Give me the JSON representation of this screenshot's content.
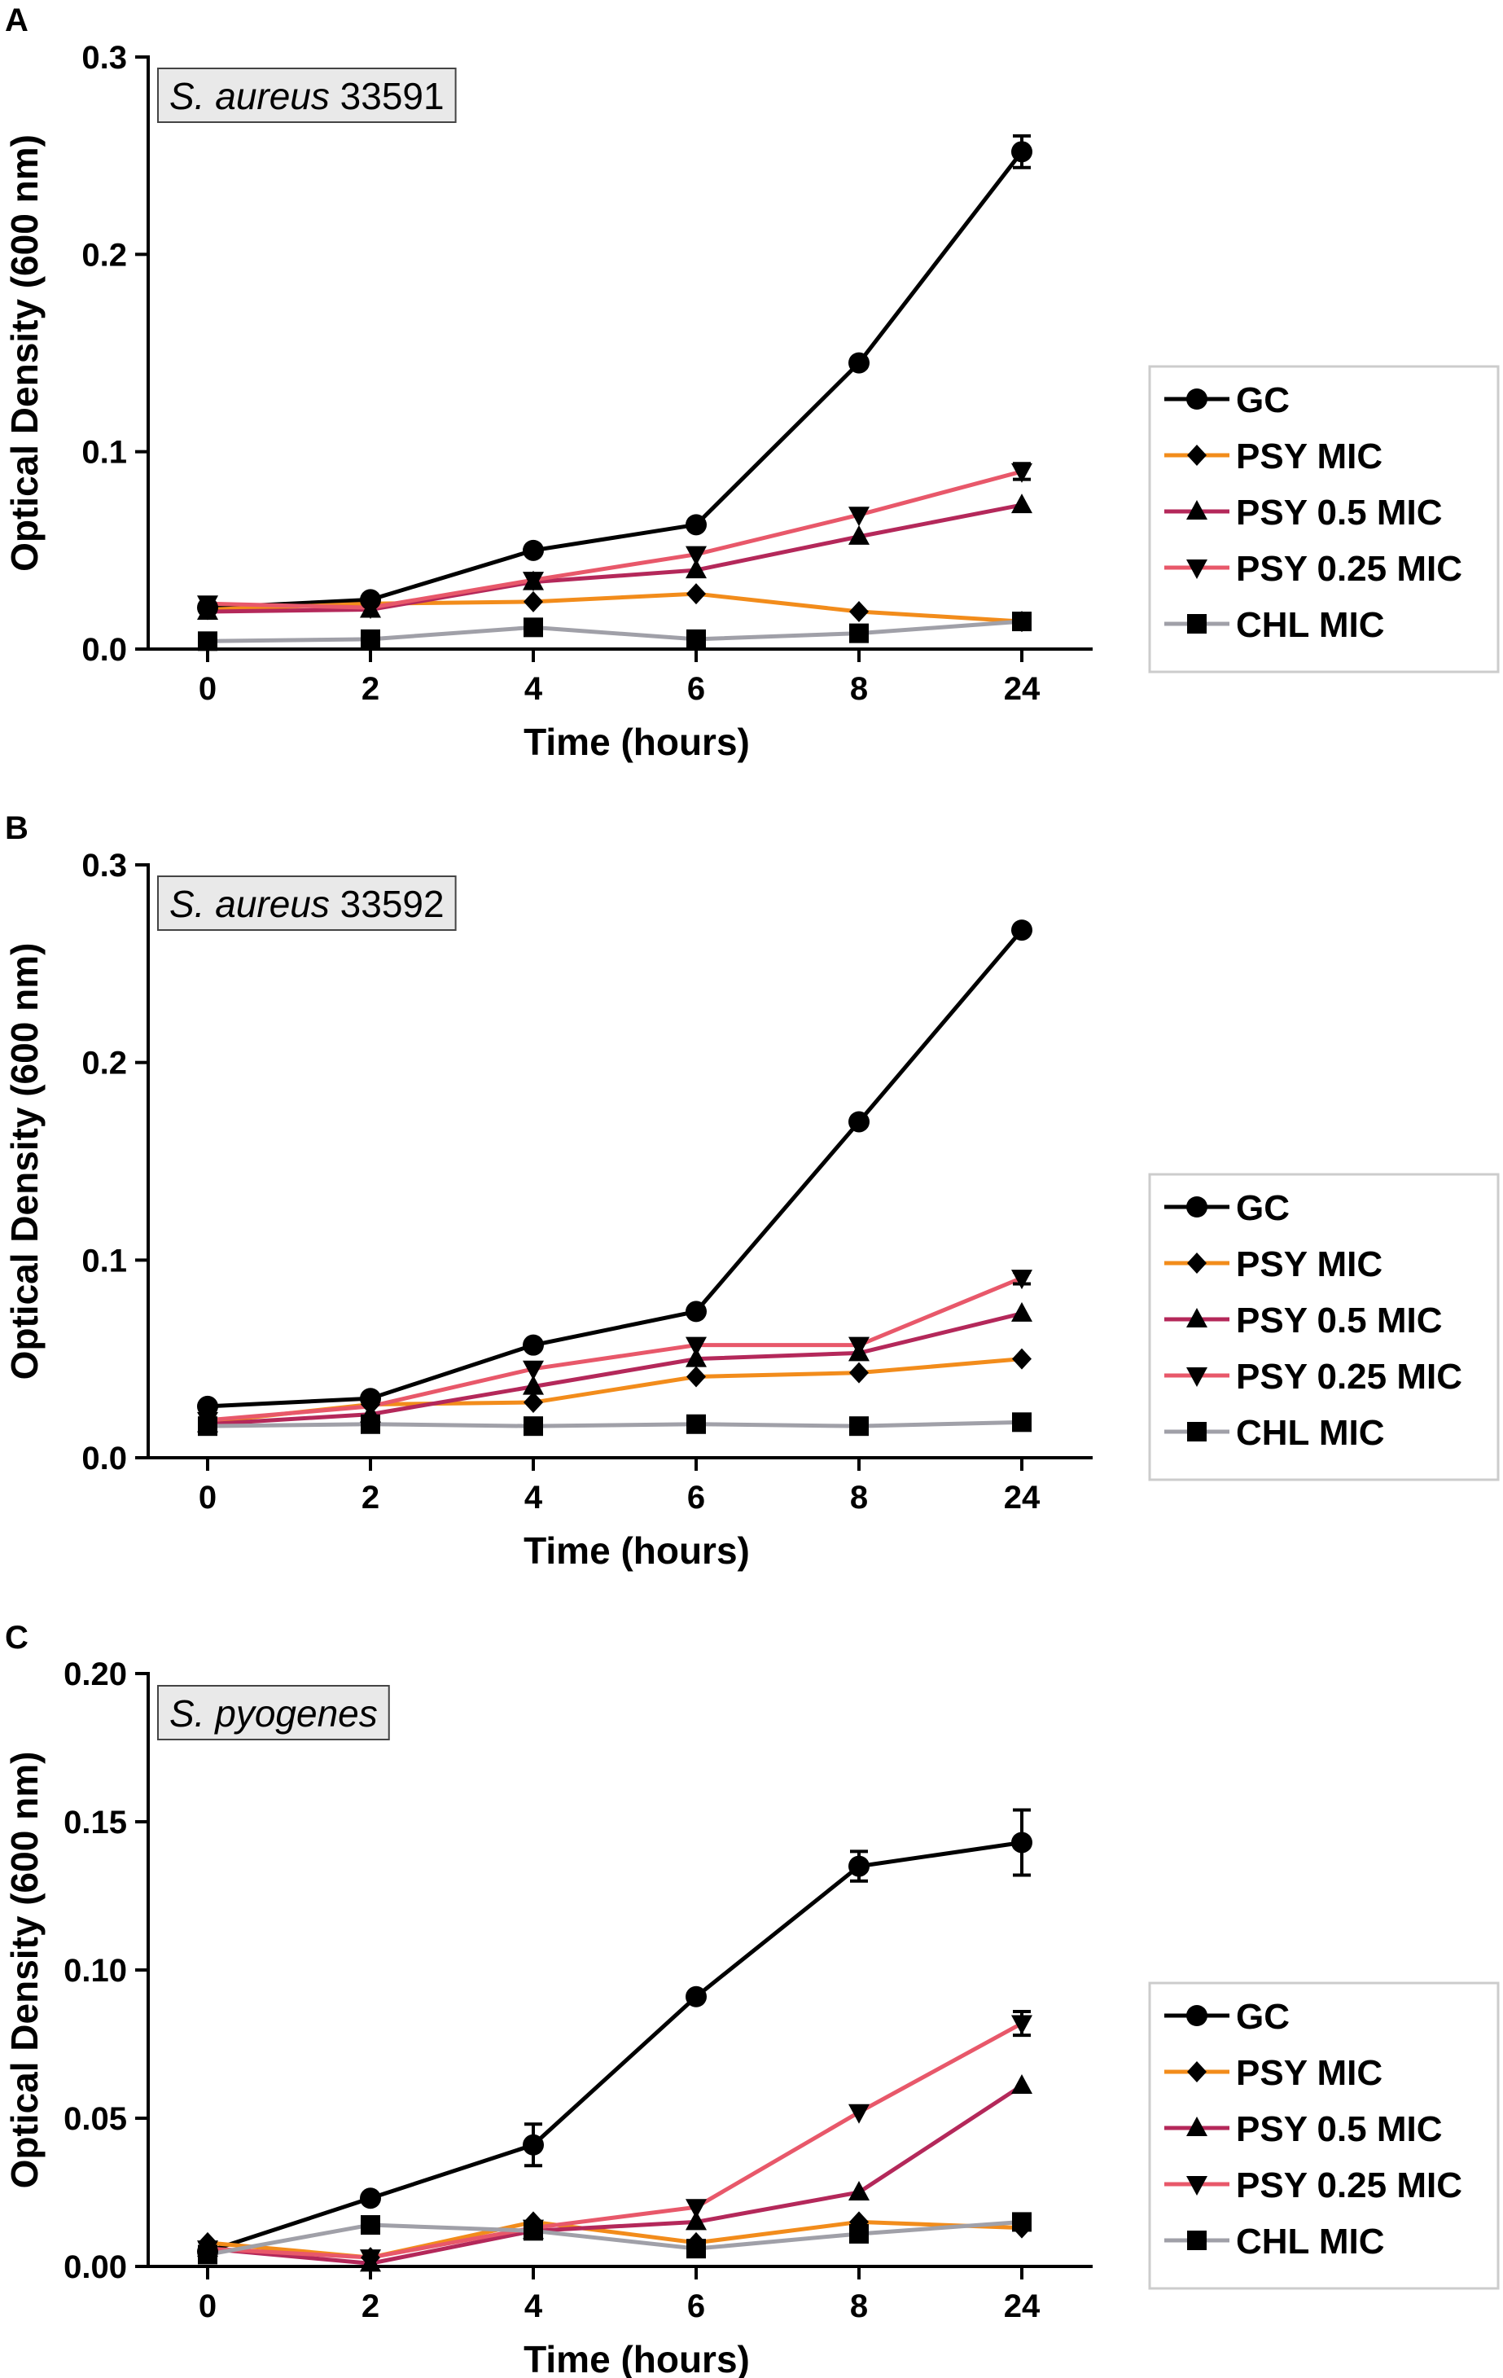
{
  "chart_data": [
    {
      "type": "line",
      "panel_label": "A",
      "annotation": {
        "italic": "S. aureus",
        "plain": "33591"
      },
      "xlabel": "Time (hours)",
      "ylabel": "Optical Density (600 nm)",
      "categories": [
        "0",
        "2",
        "4",
        "6",
        "8",
        "24"
      ],
      "ylim": [
        0,
        0.3
      ],
      "yticks": [
        "0.0",
        "0.1",
        "0.2",
        "0.3"
      ],
      "ytick_values": [
        0,
        0.1,
        0.2,
        0.3
      ],
      "legend_position": "right",
      "series": [
        {
          "name": "GC",
          "color": "#000000",
          "marker": "circle",
          "values": [
            0.021,
            0.025,
            0.05,
            0.063,
            0.145,
            0.252
          ],
          "errors": [
            0,
            0,
            0,
            0,
            0,
            0.008
          ]
        },
        {
          "name": "PSY MIC",
          "color": "#f28c1b",
          "marker": "diamond",
          "values": [
            0.02,
            0.023,
            0.024,
            0.028,
            0.019,
            0.014
          ],
          "errors": [
            0,
            0,
            0,
            0,
            0,
            0
          ]
        },
        {
          "name": "PSY 0.5 MIC",
          "color": "#b4285a",
          "marker": "triangle-up",
          "values": [
            0.019,
            0.02,
            0.034,
            0.04,
            0.057,
            0.073
          ],
          "errors": [
            0,
            0,
            0,
            0,
            0,
            0
          ]
        },
        {
          "name": "PSY 0.25 MIC",
          "color": "#e8586a",
          "marker": "triangle-down",
          "values": [
            0.023,
            0.021,
            0.035,
            0.048,
            0.068,
            0.09
          ],
          "errors": [
            0,
            0,
            0,
            0,
            0,
            0.004
          ]
        },
        {
          "name": "CHL MIC",
          "color": "#a0a0a8",
          "marker": "square",
          "values": [
            0.004,
            0.005,
            0.011,
            0.005,
            0.008,
            0.014
          ],
          "errors": [
            0,
            0,
            0,
            0,
            0,
            0
          ]
        }
      ]
    },
    {
      "type": "line",
      "panel_label": "B",
      "annotation": {
        "italic": "S. aureus",
        "plain": "33592"
      },
      "xlabel": "Time (hours)",
      "ylabel": "Optical Density (600 nm)",
      "categories": [
        "0",
        "2",
        "4",
        "6",
        "8",
        "24"
      ],
      "ylim": [
        0,
        0.3
      ],
      "yticks": [
        "0.0",
        "0.1",
        "0.2",
        "0.3"
      ],
      "ytick_values": [
        0,
        0.1,
        0.2,
        0.3
      ],
      "legend_position": "right",
      "series": [
        {
          "name": "GC",
          "color": "#000000",
          "marker": "circle",
          "values": [
            0.026,
            0.03,
            0.057,
            0.074,
            0.17,
            0.267
          ],
          "errors": [
            0,
            0,
            0,
            0,
            0,
            0
          ]
        },
        {
          "name": "PSY MIC",
          "color": "#f28c1b",
          "marker": "diamond",
          "values": [
            0.018,
            0.027,
            0.028,
            0.041,
            0.043,
            0.05
          ],
          "errors": [
            0,
            0,
            0,
            0,
            0,
            0
          ]
        },
        {
          "name": "PSY 0.5 MIC",
          "color": "#b4285a",
          "marker": "triangle-up",
          "values": [
            0.017,
            0.022,
            0.036,
            0.05,
            0.053,
            0.073
          ],
          "errors": [
            0,
            0,
            0,
            0,
            0,
            0
          ]
        },
        {
          "name": "PSY 0.25 MIC",
          "color": "#e8586a",
          "marker": "triangle-down",
          "values": [
            0.019,
            0.026,
            0.045,
            0.057,
            0.057,
            0.091
          ],
          "errors": [
            0,
            0,
            0,
            0,
            0,
            0.003
          ]
        },
        {
          "name": "CHL MIC",
          "color": "#a0a0a8",
          "marker": "square",
          "values": [
            0.016,
            0.017,
            0.016,
            0.017,
            0.016,
            0.018
          ],
          "errors": [
            0,
            0,
            0,
            0,
            0,
            0
          ]
        }
      ]
    },
    {
      "type": "line",
      "panel_label": "C",
      "annotation": {
        "italic": "S. pyogenes",
        "plain": ""
      },
      "xlabel": "Time (hours)",
      "ylabel": "Optical Density (600 nm)",
      "categories": [
        "0",
        "2",
        "4",
        "6",
        "8",
        "24"
      ],
      "ylim": [
        0,
        0.2
      ],
      "yticks": [
        "0.00",
        "0.05",
        "0.10",
        "0.15",
        "0.20"
      ],
      "ytick_values": [
        0,
        0.05,
        0.1,
        0.15,
        0.2
      ],
      "legend_position": "right",
      "series": [
        {
          "name": "GC",
          "color": "#000000",
          "marker": "circle",
          "values": [
            0.005,
            0.023,
            0.041,
            0.091,
            0.135,
            0.143
          ],
          "errors": [
            0,
            0,
            0.007,
            0,
            0.005,
            0.011
          ]
        },
        {
          "name": "PSY MIC",
          "color": "#f28c1b",
          "marker": "diamond",
          "values": [
            0.008,
            0.003,
            0.015,
            0.008,
            0.015,
            0.013
          ],
          "errors": [
            0,
            0,
            0,
            0,
            0,
            0
          ]
        },
        {
          "name": "PSY 0.5 MIC",
          "color": "#b4285a",
          "marker": "triangle-up",
          "values": [
            0.006,
            0.001,
            0.012,
            0.015,
            0.025,
            0.061
          ],
          "errors": [
            0,
            0,
            0,
            0,
            0,
            0
          ]
        },
        {
          "name": "PSY 0.25 MIC",
          "color": "#e8586a",
          "marker": "triangle-down",
          "values": [
            0.006,
            0.003,
            0.013,
            0.02,
            0.052,
            0.082
          ],
          "errors": [
            0,
            0,
            0,
            0,
            0,
            0.004
          ]
        },
        {
          "name": "CHL MIC",
          "color": "#a0a0a8",
          "marker": "square",
          "values": [
            0.004,
            0.014,
            0.012,
            0.006,
            0.011,
            0.015
          ],
          "errors": [
            0,
            0,
            0,
            0,
            0,
            0
          ]
        }
      ]
    }
  ]
}
